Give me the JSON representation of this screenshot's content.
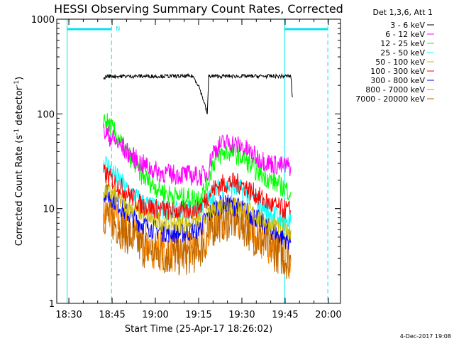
{
  "chart_data": {
    "type": "line",
    "title": "HESSI Observing Summary Count Rates, Corrected",
    "xlabel": "Start Time (25-Apr-17 18:26:02)",
    "ylabel": "Corrected Count Rate (s",
    "ylabel_sup1": "-1",
    "ylabel_mid": " detector",
    "ylabel_sup2": "-1",
    "ylabel_end": ")",
    "yscale": "log",
    "ylim": [
      1,
      1000
    ],
    "xlim_minutes": [
      18.43,
      20.07
    ],
    "x_ticks": [
      "18:30",
      "18:45",
      "19:00",
      "19:15",
      "19:30",
      "19:45",
      "20:00"
    ],
    "x_tick_minutes": [
      30,
      45,
      60,
      75,
      90,
      105,
      120
    ],
    "y_ticks": [
      "1",
      "10",
      "100",
      "1000"
    ],
    "y_tick_values": [
      1,
      10,
      100,
      1000
    ],
    "legend_title": "Det 1,3,6, Att 1",
    "legend_position": "right",
    "footer_date": "4-Dec-2017 19:08",
    "night_marker": "N",
    "cyan_vertical_solid_minutes": [
      29.4,
      104.8
    ],
    "cyan_vertical_dashed_minutes": [
      44.8,
      119.8
    ],
    "cyan_bars": [
      {
        "start_minutes": 29.4,
        "end_minutes": 44.8
      },
      {
        "start_minutes": 104.8,
        "end_minutes": 119.8
      }
    ],
    "series": [
      {
        "name": "3 - 6 keV",
        "color": "#000000",
        "x": [
          42,
          43,
          50,
          60,
          70,
          73,
          75,
          77,
          78,
          78.5,
          80,
          85,
          90,
          95,
          100,
          104,
          107,
          107.5
        ],
        "y": [
          230,
          250,
          250,
          250,
          250,
          250,
          200,
          130,
          100,
          250,
          250,
          250,
          250,
          250,
          250,
          250,
          250,
          150
        ]
      },
      {
        "name": "6 - 12 keV",
        "color": "#ff00ff",
        "x": [
          42,
          45,
          50,
          55,
          60,
          65,
          70,
          74,
          76,
          78,
          80,
          83,
          86,
          90,
          95,
          100,
          104,
          107
        ],
        "y": [
          65,
          55,
          40,
          30,
          25,
          23,
          23,
          22,
          22,
          24,
          40,
          48,
          50,
          45,
          35,
          30,
          28,
          28
        ]
      },
      {
        "name": "12 - 25 keV",
        "color": "#00ff00",
        "x": [
          42,
          45,
          50,
          55,
          60,
          65,
          70,
          74,
          76,
          78,
          80,
          83,
          86,
          90,
          95,
          100,
          104,
          107
        ],
        "y": [
          90,
          70,
          40,
          23,
          17,
          14,
          13,
          13,
          14,
          18,
          30,
          38,
          40,
          35,
          25,
          20,
          17,
          15
        ]
      },
      {
        "name": "25 - 50 keV",
        "color": "#00ffff",
        "x": [
          42,
          45,
          50,
          55,
          60,
          65,
          70,
          74,
          76,
          78,
          80,
          83,
          86,
          90,
          95,
          100,
          104,
          107
        ],
        "y": [
          32,
          25,
          16,
          12,
          10,
          9.5,
          9.5,
          10,
          10.5,
          12,
          15,
          17,
          17,
          16,
          12,
          9,
          8,
          7
        ]
      },
      {
        "name": "50 - 100 keV",
        "color": "#ccbb00",
        "x": [
          42,
          45,
          50,
          55,
          60,
          65,
          70,
          74,
          76,
          78,
          80,
          83,
          86,
          90,
          95,
          100,
          104,
          107
        ],
        "y": [
          16,
          14,
          11,
          9,
          7.5,
          7,
          7,
          7.5,
          8,
          9,
          10,
          11,
          11,
          10,
          8.5,
          7,
          6.5,
          6
        ]
      },
      {
        "name": "100 - 300 keV",
        "color": "#ff0000",
        "x": [
          42,
          45,
          50,
          55,
          60,
          65,
          70,
          74,
          76,
          78,
          80,
          83,
          86,
          90,
          95,
          100,
          104,
          107
        ],
        "y": [
          24,
          20,
          15,
          11,
          10,
          9.5,
          9.5,
          10,
          11,
          13,
          16,
          18,
          19,
          18,
          14,
          11,
          10,
          9.5
        ]
      },
      {
        "name": "300 - 800 keV",
        "color": "#0000ff",
        "x": [
          42,
          45,
          50,
          55,
          60,
          65,
          70,
          74,
          76,
          78,
          80,
          83,
          86,
          90,
          95,
          100,
          104,
          107
        ],
        "y": [
          15,
          13,
          9,
          7,
          6,
          5.5,
          5.5,
          6,
          6.5,
          8,
          10,
          11,
          11,
          10,
          8,
          6,
          5,
          4.5
        ]
      },
      {
        "name": "800 - 7000 keV",
        "color": "#ff8800",
        "x": [
          42,
          45,
          50,
          55,
          60,
          65,
          70,
          74,
          76,
          78,
          80,
          83,
          86,
          90,
          95,
          100,
          104,
          107
        ],
        "y": [
          9.5,
          8,
          6,
          4.5,
          3.8,
          3.5,
          3.5,
          4,
          4.5,
          5.5,
          7,
          8,
          8,
          7.5,
          5.5,
          4,
          3.5,
          3
        ]
      },
      {
        "name": "7000 - 20000 keV",
        "color": "#bb6600",
        "x": [
          42,
          45,
          50,
          55,
          60,
          65,
          70,
          74,
          76,
          78,
          80,
          83,
          86,
          90,
          95,
          100,
          104,
          107
        ],
        "y": [
          9,
          7.5,
          5.5,
          4,
          3.5,
          3.2,
          3.2,
          3.5,
          4,
          5,
          6.5,
          7.5,
          7.5,
          7,
          5,
          3.8,
          3.2,
          2.8
        ]
      }
    ]
  }
}
